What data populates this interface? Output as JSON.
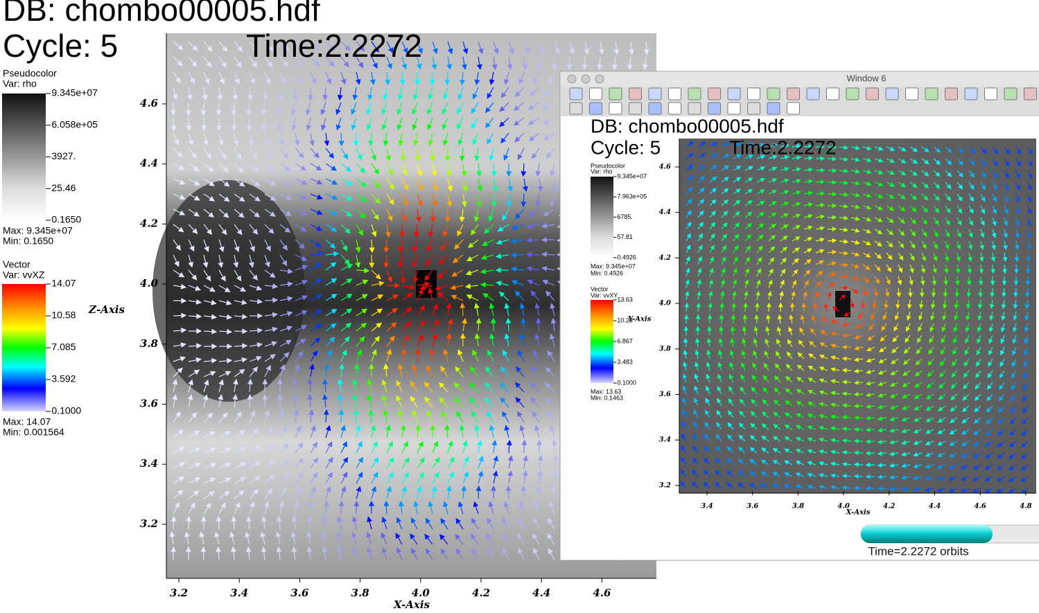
{
  "main": {
    "db": "DB: chombo00005.hdf",
    "cycle": "Cycle: 5",
    "time": "Time:2.2272",
    "pseudocolor": {
      "title": "Pseudocolor",
      "var": "Var: rho",
      "labels": [
        "9.345e+07",
        "6.058e+05",
        "3927.",
        "25.46",
        "0.1650"
      ],
      "max": "Max:  9.345e+07",
      "min": "Min:  0.1650"
    },
    "vector": {
      "title": "Vector",
      "var": "Var: vvXZ",
      "labels": [
        "14.07",
        "10.58",
        "7.085",
        "3.592",
        "0.1000"
      ],
      "max": "Max:  14.07",
      "min": "Min:  0.001564"
    },
    "y_axis": {
      "title": "Z-Axis",
      "ticks": [
        "4.6",
        "4.4",
        "4.2",
        "4.0",
        "3.8",
        "3.6",
        "3.4",
        "3.2"
      ]
    },
    "x_axis": {
      "title": "X-Axis",
      "ticks": [
        "3.2",
        "3.4",
        "3.6",
        "3.8",
        "4.0",
        "4.2",
        "4.4",
        "4.6"
      ]
    }
  },
  "window": {
    "title": "Window 6",
    "db": "DB: chombo00005.hdf",
    "cycle": "Cycle: 5",
    "time": "Time:2.2272",
    "pseudocolor": {
      "title": "Pseudocolor",
      "var": "Var: rho",
      "labels": [
        "9.345e+07",
        "7.963e+05",
        "6785.",
        "57.81",
        "0.4926"
      ],
      "max": "Max:  9.345e+07",
      "min": "Min:  0.4926"
    },
    "vector": {
      "title": "Vector",
      "var": "Var: vvXY",
      "labels": [
        "13.63",
        "10.23",
        "6.867",
        "3.483",
        "0.1000"
      ],
      "max": "Max:  13.63",
      "min": "Min:  0.1463"
    },
    "y_axis": {
      "title": "Y-Axis",
      "ticks": [
        "4.6",
        "4.4",
        "4.2",
        "4.0",
        "3.8",
        "3.6",
        "3.4",
        "3.2"
      ]
    },
    "x_axis": {
      "title": "X-Axis",
      "ticks": [
        "3.4",
        "3.6",
        "3.8",
        "4.0",
        "4.2",
        "4.4",
        "4.6",
        "4.8"
      ]
    },
    "time_slider": "Time=2.2272 orbits"
  }
}
